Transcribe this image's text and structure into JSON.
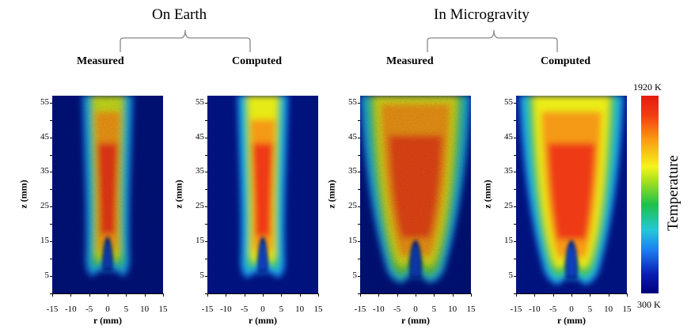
{
  "groups": {
    "earth": "On Earth",
    "micro": "In Microgravity"
  },
  "panels": [
    {
      "title": "Measured",
      "kind": "earth-measured"
    },
    {
      "title": "Computed",
      "kind": "earth-computed"
    },
    {
      "title": "Measured",
      "kind": "micro-measured"
    },
    {
      "title": "Computed",
      "kind": "micro-computed"
    }
  ],
  "axes": {
    "y_label": "z (mm)",
    "x_label": "r (mm)",
    "y_ticks": [
      "55",
      "45",
      "35",
      "25",
      "15",
      "5"
    ],
    "x_ticks": [
      "-15",
      "-10",
      "-5",
      "0",
      "5",
      "10",
      "15"
    ]
  },
  "colorbar": {
    "max_label": "1920 K",
    "min_label": "300 K",
    "title": "Temperature"
  }
}
